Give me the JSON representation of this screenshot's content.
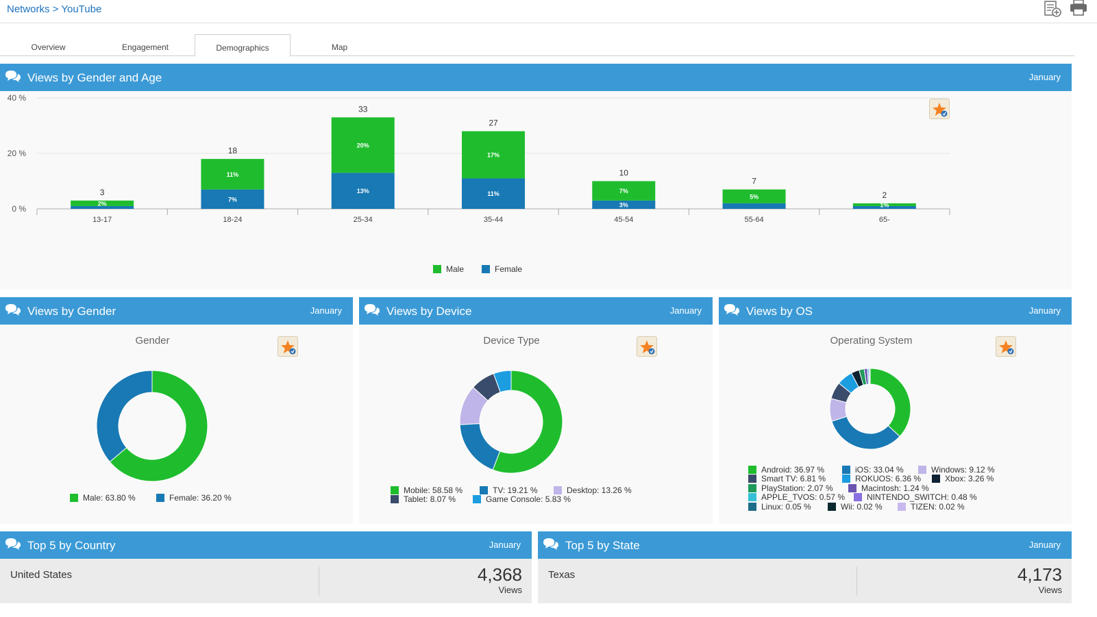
{
  "breadcrumb": {
    "parent": "Networks",
    "separator": " > ",
    "current": "YouTube"
  },
  "tabs": [
    {
      "label": "Overview"
    },
    {
      "label": "Engagement"
    },
    {
      "label": "Demographics"
    },
    {
      "label": "Map"
    }
  ],
  "active_tab": "Demographics",
  "colors": {
    "header": "#3b9ad6",
    "male": "#1fbd2e",
    "female": "#1879b4"
  },
  "panels": {
    "gender_age": {
      "title": "Views by Gender and Age",
      "month": "January"
    },
    "gender": {
      "title": "Views by Gender",
      "month": "January",
      "chart_title": "Gender"
    },
    "device": {
      "title": "Views by Device",
      "month": "January",
      "chart_title": "Device Type"
    },
    "os": {
      "title": "Views by OS",
      "month": "January",
      "chart_title": "Operating System"
    },
    "country": {
      "title": "Top 5 by Country",
      "month": "January",
      "name": "United States",
      "value": "4,368",
      "unit": "Views"
    },
    "state": {
      "title": "Top 5 by State",
      "month": "January",
      "name": "Texas",
      "value": "4,173",
      "unit": "Views"
    }
  },
  "chart_data": [
    {
      "type": "bar",
      "stacked": true,
      "categories": [
        "13-17",
        "18-24",
        "25-34",
        "35-44",
        "45-54",
        "55-64",
        "65-"
      ],
      "series": [
        {
          "name": "Female",
          "color": "#1879b4",
          "values": [
            1,
            7,
            13,
            11,
            3,
            2,
            1
          ],
          "labels": [
            "",
            "7%",
            "13%",
            "11%",
            "3%",
            "",
            ""
          ]
        },
        {
          "name": "Male",
          "color": "#1fbd2e",
          "values": [
            2,
            11,
            20,
            17,
            7,
            5,
            1
          ],
          "labels": [
            "2%",
            "11%",
            "20%",
            "17%",
            "7%",
            "5%",
            "1%"
          ]
        }
      ],
      "totals": [
        "3",
        "18",
        "33",
        "27",
        "10",
        "7",
        "2"
      ],
      "ylim": [
        0,
        40
      ],
      "yticks": [
        "0 %",
        "20 %",
        "40 %"
      ],
      "legend": "bottom"
    },
    {
      "type": "pie",
      "donut": true,
      "title": "Gender",
      "slices": [
        {
          "name": "Male",
          "value": 63.8,
          "label": "Male: 63.80 %",
          "color": "#1fbd2e"
        },
        {
          "name": "Female",
          "value": 36.2,
          "label": "Female: 36.20 %",
          "color": "#1879b4"
        }
      ]
    },
    {
      "type": "pie",
      "donut": true,
      "title": "Device Type",
      "slices": [
        {
          "name": "Mobile",
          "value": 58.58,
          "label": "Mobile: 58.58 %",
          "color": "#1fbd2e"
        },
        {
          "name": "TV",
          "value": 19.21,
          "label": "TV: 19.21 %",
          "color": "#1879b4"
        },
        {
          "name": "Desktop",
          "value": 13.26,
          "label": "Desktop: 13.26 %",
          "color": "#c0b5e8"
        },
        {
          "name": "Tablet",
          "value": 8.07,
          "label": "Tablet: 8.07 %",
          "color": "#3a4c6b"
        },
        {
          "name": "Game Console",
          "value": 5.83,
          "label": "Game Console: 5.83 %",
          "color": "#1b9de0"
        }
      ]
    },
    {
      "type": "pie",
      "donut": true,
      "title": "Operating System",
      "slices": [
        {
          "name": "Android",
          "value": 36.97,
          "label": "Android: 36.97 %",
          "color": "#1fbd2e"
        },
        {
          "name": "iOS",
          "value": 33.04,
          "label": "iOS: 33.04 %",
          "color": "#1879b4"
        },
        {
          "name": "Windows",
          "value": 9.12,
          "label": "Windows: 9.12 %",
          "color": "#c0b5e8"
        },
        {
          "name": "Smart TV",
          "value": 6.81,
          "label": "Smart TV: 6.81 %",
          "color": "#3a4c6b"
        },
        {
          "name": "ROKUOS",
          "value": 6.36,
          "label": "ROKUOS: 6.36 %",
          "color": "#1b9de0"
        },
        {
          "name": "Xbox",
          "value": 3.26,
          "label": "Xbox: 3.26 %",
          "color": "#0f2233"
        },
        {
          "name": "PlayStation",
          "value": 2.07,
          "label": "PlayStation: 2.07 %",
          "color": "#1e9a5a"
        },
        {
          "name": "Macintosh",
          "value": 1.24,
          "label": "Macintosh: 1.24 %",
          "color": "#6a55b0"
        },
        {
          "name": "APPLE_TVOS",
          "value": 0.57,
          "label": "APPLE_TVOS: 0.57 %",
          "color": "#35c0d8"
        },
        {
          "name": "NINTENDO_SWITCH",
          "value": 0.48,
          "label": "NINTENDO_SWITCH: 0.48 %",
          "color": "#8a6fe0"
        },
        {
          "name": "Linux",
          "value": 0.05,
          "label": "Linux: 0.05 %",
          "color": "#1d6e8a"
        },
        {
          "name": "Wii",
          "value": 0.02,
          "label": "Wii: 0.02 %",
          "color": "#0b2a30"
        },
        {
          "name": "TIZEN",
          "value": 0.02,
          "label": "TIZEN: 0.02 %",
          "color": "#c9b8ee"
        }
      ]
    }
  ]
}
